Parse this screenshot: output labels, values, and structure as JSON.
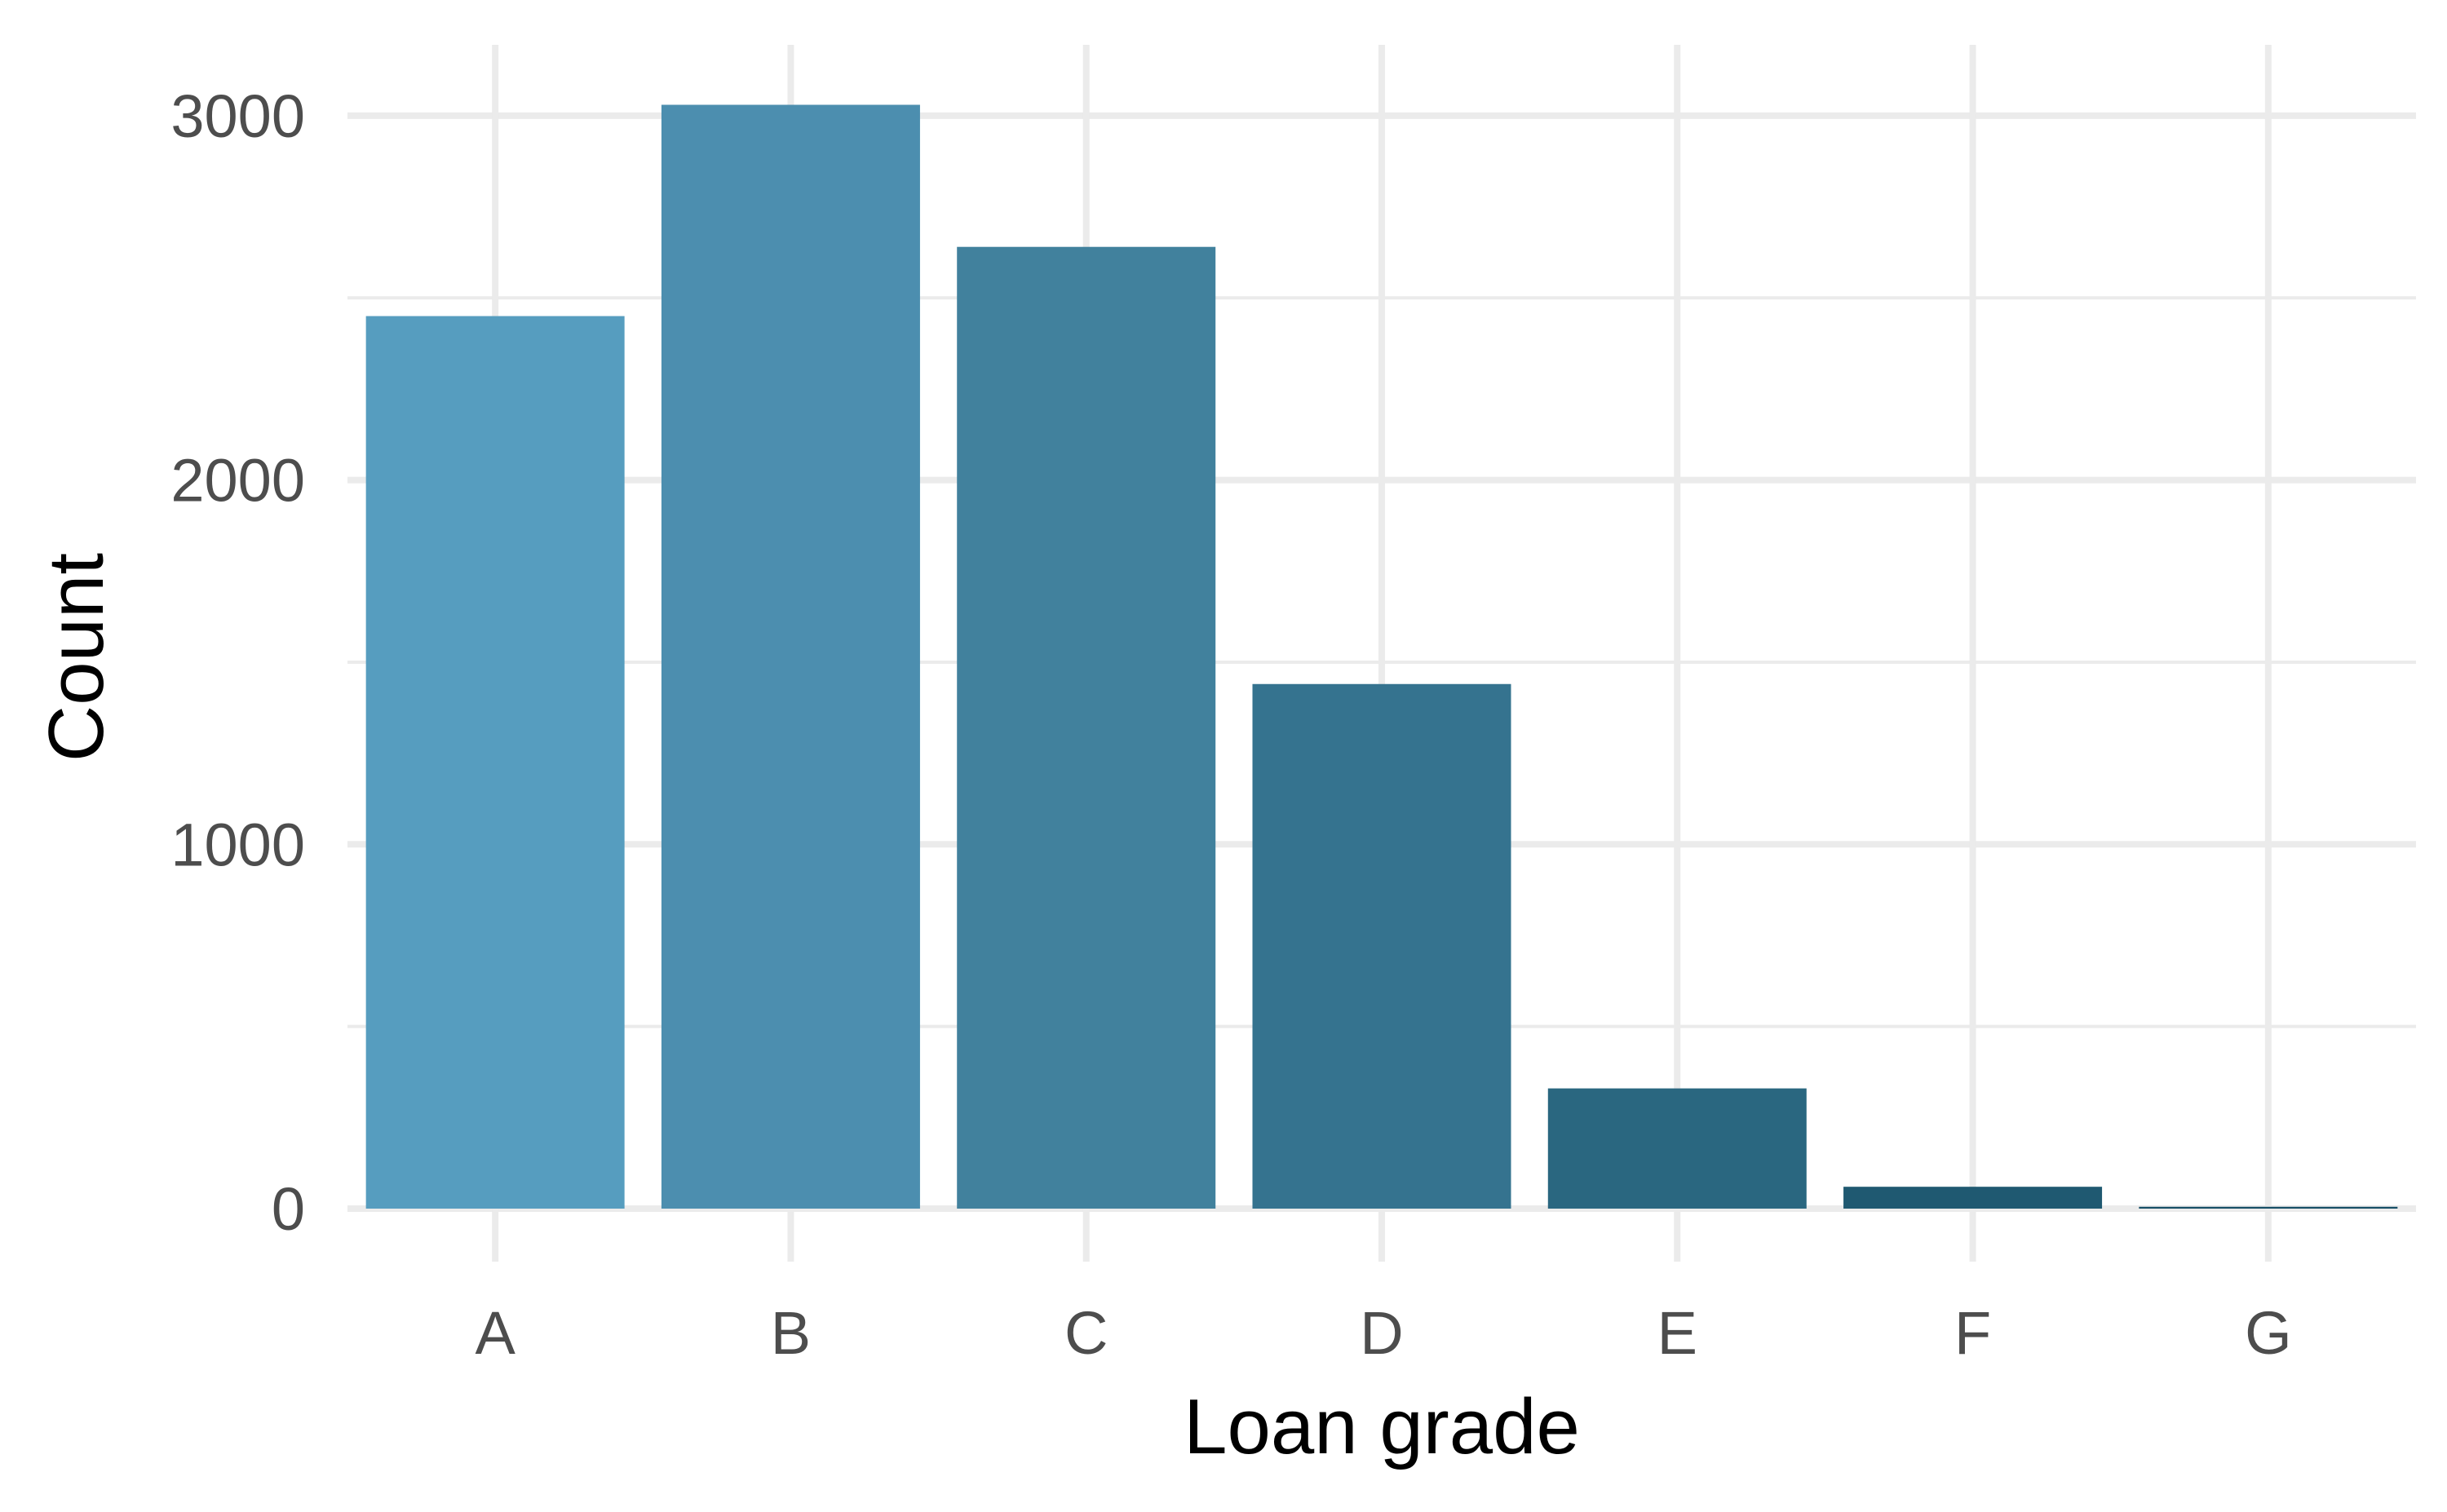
{
  "chart_data": {
    "type": "bar",
    "title": "",
    "xlabel": "Loan grade",
    "ylabel": "Count",
    "categories": [
      "A",
      "B",
      "C",
      "D",
      "E",
      "F",
      "G"
    ],
    "values": [
      2450,
      3030,
      2640,
      1440,
      330,
      60,
      5
    ],
    "ylim": [
      0,
      3120
    ],
    "yticks": [
      0,
      1000,
      2000,
      3000
    ],
    "y_tick_labels": [
      "0",
      "1000",
      "2000",
      "3000"
    ],
    "grid": true,
    "legend": "none",
    "bar_colors": [
      "#569dbf",
      "#4c8eaf",
      "#41819d",
      "#35738f",
      "#2a6780",
      "#1f5971",
      "#174f66"
    ],
    "grid_color": "#ebebeb"
  }
}
